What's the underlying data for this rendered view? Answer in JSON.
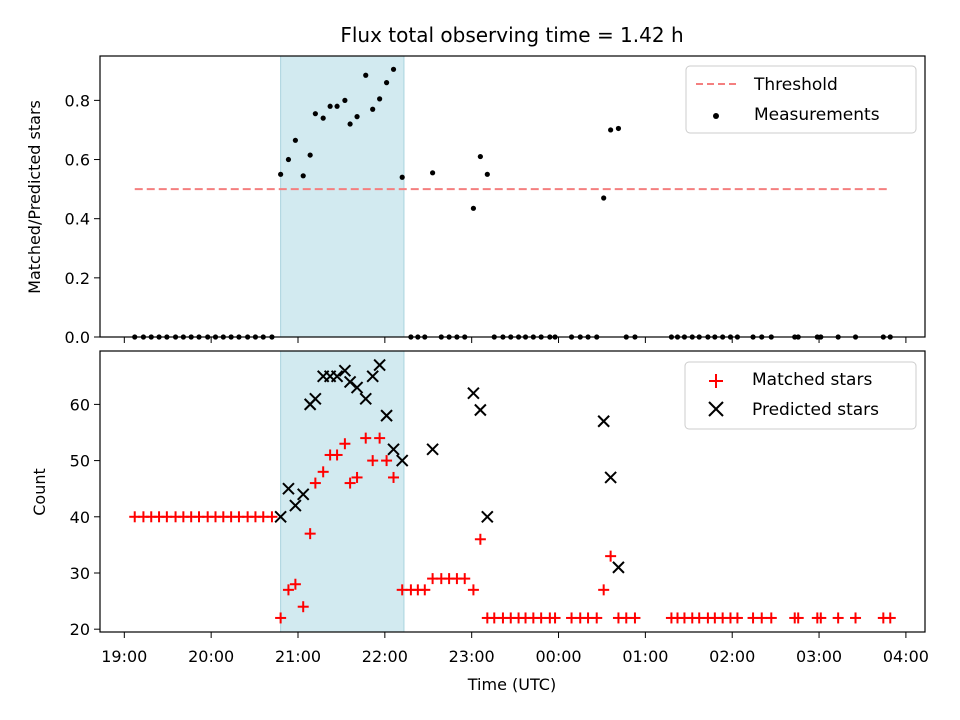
{
  "chart_data": [
    {
      "type": "scatter",
      "title": "Flux total observing time = 1.42 h",
      "ylabel": "Matched/Predicted stars",
      "ylim": [
        0,
        0.95
      ],
      "xlim": [
        18.72,
        28.22
      ],
      "yticks": [
        0.0,
        0.2,
        0.4,
        0.6,
        0.8
      ],
      "ytick_labels": [
        "0.0",
        "0.2",
        "0.4",
        "0.6",
        "0.8"
      ],
      "highlight_span": [
        20.8,
        22.22
      ],
      "highlight_color": "#d2eaf0",
      "threshold": {
        "name": "Threshold",
        "value": 0.5,
        "x_range": [
          19.12,
          27.82
        ],
        "color": "#f47f7f",
        "style": "dashed"
      },
      "legend": [
        "Threshold",
        "Measurements"
      ],
      "legend_position": "upper right",
      "series": [
        {
          "name": "Measurements",
          "marker": "dot",
          "color": "#000000",
          "x": [
            19.12,
            19.22,
            19.31,
            19.4,
            19.49,
            19.59,
            19.68,
            19.77,
            19.86,
            19.96,
            20.05,
            20.14,
            20.23,
            20.32,
            20.42,
            20.51,
            20.6,
            20.7,
            20.8,
            20.89,
            20.97,
            21.06,
            21.14,
            21.2,
            21.29,
            21.37,
            21.45,
            21.54,
            21.6,
            21.68,
            21.78,
            21.86,
            21.94,
            22.02,
            22.1,
            22.2,
            22.3,
            22.38,
            22.46,
            22.55,
            22.65,
            22.74,
            22.83,
            22.92,
            23.02,
            23.1,
            23.18,
            23.26,
            23.36,
            23.45,
            23.54,
            23.62,
            23.71,
            23.8,
            23.9,
            23.96,
            24.15,
            24.25,
            24.34,
            24.44,
            24.52,
            24.6,
            24.69,
            24.78,
            24.88,
            25.3,
            25.37,
            25.45,
            25.54,
            25.62,
            25.72,
            25.8,
            25.89,
            25.98,
            26.06,
            26.24,
            26.34,
            26.45,
            26.72,
            26.76,
            26.98,
            27.02,
            27.22,
            27.42,
            27.74,
            27.82
          ],
          "y": [
            0,
            0,
            0,
            0,
            0,
            0,
            0,
            0,
            0,
            0,
            0,
            0,
            0,
            0,
            0,
            0,
            0,
            0,
            0.55,
            0.6,
            0.665,
            0.545,
            0.615,
            0.755,
            0.74,
            0.78,
            0.78,
            0.8,
            0.72,
            0.745,
            0.885,
            0.77,
            0.805,
            0.86,
            0.905,
            0.54,
            0,
            0,
            0,
            0.555,
            0,
            0,
            0,
            0,
            0.435,
            0.61,
            0.55,
            0,
            0,
            0,
            0,
            0,
            0,
            0,
            0,
            0,
            0,
            0,
            0,
            0,
            0.47,
            0.7,
            0.705,
            0,
            0,
            0,
            0,
            0,
            0,
            0,
            0,
            0,
            0,
            0,
            0,
            0,
            0,
            0,
            0,
            0,
            0,
            0,
            0,
            0,
            0,
            0
          ]
        }
      ]
    },
    {
      "type": "scatter",
      "xlabel": "Time (UTC)",
      "ylabel": "Count",
      "ylim": [
        19.5,
        69.5
      ],
      "xlim": [
        18.72,
        28.22
      ],
      "yticks": [
        20,
        30,
        40,
        50,
        60
      ],
      "ytick_labels": [
        "20",
        "30",
        "40",
        "50",
        "60"
      ],
      "xticks": [
        19,
        20,
        21,
        22,
        23,
        24,
        25,
        26,
        27,
        28
      ],
      "xtick_labels": [
        "19:00",
        "20:00",
        "21:00",
        "22:00",
        "23:00",
        "00:00",
        "01:00",
        "02:00",
        "03:00",
        "04:00"
      ],
      "highlight_span": [
        20.8,
        22.22
      ],
      "highlight_color": "#d2eaf0",
      "legend": [
        "Matched stars",
        "Predicted stars"
      ],
      "legend_position": "upper right",
      "series": [
        {
          "name": "Matched stars",
          "marker": "plus",
          "color": "#ff0000",
          "x": [
            19.12,
            19.22,
            19.31,
            19.4,
            19.49,
            19.59,
            19.68,
            19.77,
            19.86,
            19.96,
            20.05,
            20.14,
            20.23,
            20.32,
            20.42,
            20.51,
            20.6,
            20.7,
            20.8,
            20.89,
            20.97,
            21.06,
            21.14,
            21.2,
            21.29,
            21.37,
            21.45,
            21.54,
            21.6,
            21.68,
            21.78,
            21.86,
            21.94,
            22.02,
            22.1,
            22.2,
            22.3,
            22.38,
            22.46,
            22.55,
            22.65,
            22.74,
            22.83,
            22.92,
            23.02,
            23.1,
            23.18,
            23.26,
            23.36,
            23.45,
            23.54,
            23.62,
            23.71,
            23.8,
            23.9,
            23.96,
            24.15,
            24.25,
            24.34,
            24.44,
            24.52,
            24.6,
            24.69,
            24.78,
            24.88,
            25.3,
            25.37,
            25.45,
            25.54,
            25.62,
            25.72,
            25.8,
            25.89,
            25.98,
            26.06,
            26.24,
            26.34,
            26.45,
            26.72,
            26.76,
            26.98,
            27.02,
            27.22,
            27.42,
            27.74,
            27.82
          ],
          "y": [
            40,
            40,
            40,
            40,
            40,
            40,
            40,
            40,
            40,
            40,
            40,
            40,
            40,
            40,
            40,
            40,
            40,
            40,
            22,
            27,
            28,
            24,
            37,
            46,
            48,
            51,
            51,
            53,
            46,
            47,
            54,
            50,
            54,
            50,
            47,
            27,
            27,
            27,
            27,
            29,
            29,
            29,
            29,
            29,
            27,
            36,
            22,
            22,
            22,
            22,
            22,
            22,
            22,
            22,
            22,
            22,
            22,
            22,
            22,
            22,
            27,
            33,
            22,
            22,
            22,
            22,
            22,
            22,
            22,
            22,
            22,
            22,
            22,
            22,
            22,
            22,
            22,
            22,
            22,
            22,
            22,
            22,
            22,
            22,
            22,
            22
          ]
        },
        {
          "name": "Predicted stars",
          "marker": "x",
          "color": "#000000",
          "x": [
            20.8,
            20.89,
            20.97,
            21.06,
            21.14,
            21.2,
            21.29,
            21.37,
            21.45,
            21.54,
            21.6,
            21.68,
            21.78,
            21.86,
            21.94,
            22.02,
            22.1,
            22.2,
            22.55,
            23.02,
            23.1,
            23.18,
            24.52,
            24.6,
            24.69
          ],
          "y": [
            40,
            45,
            42,
            44,
            60,
            61,
            65,
            65,
            65,
            66,
            64,
            63,
            61,
            65,
            67,
            58,
            52,
            50,
            52,
            62,
            59,
            40,
            57,
            47,
            31
          ]
        }
      ]
    }
  ]
}
